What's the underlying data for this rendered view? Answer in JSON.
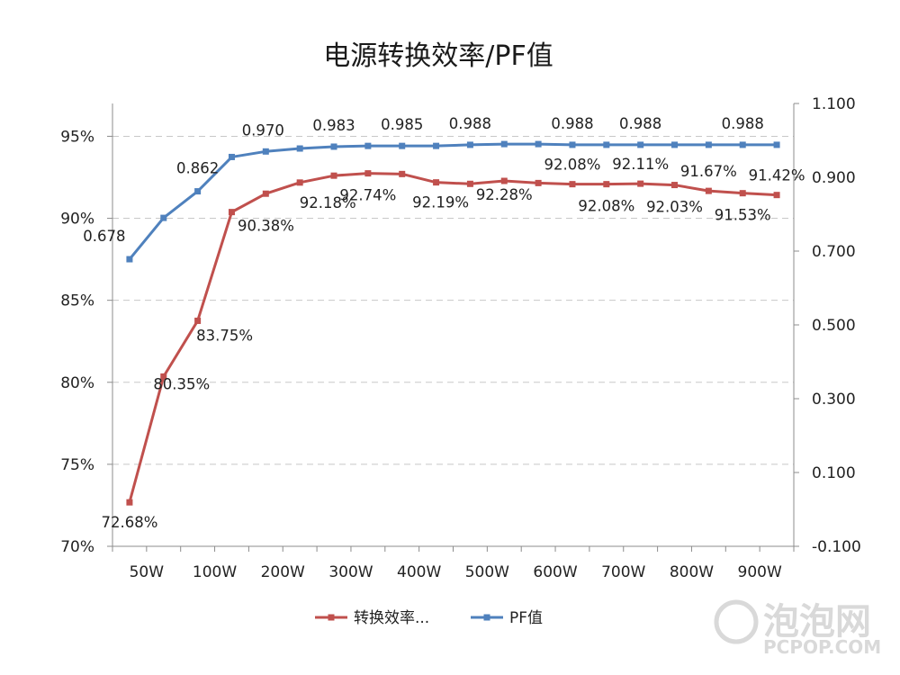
{
  "chart_data": {
    "type": "line",
    "title": "电源转换效率/PF值",
    "categories": [
      "50W",
      "",
      "100W",
      "",
      "200W",
      "",
      "300W",
      "",
      "400W",
      "",
      "500W",
      "",
      "600W",
      "",
      "700W",
      "",
      "800W",
      "",
      "900W",
      ""
    ],
    "series": [
      {
        "name": "转换效率...",
        "axis": "left",
        "color": "#c0504d",
        "values": [
          72.68,
          80.35,
          83.75,
          90.38,
          91.5,
          92.18,
          92.6,
          92.74,
          92.7,
          92.19,
          92.1,
          92.28,
          92.15,
          92.08,
          92.08,
          92.11,
          92.03,
          91.67,
          91.53,
          91.42
        ],
        "labels": [
          "72.68%",
          "80.35%",
          "83.75%",
          "90.38%",
          "",
          "92.18%",
          "",
          "92.74%",
          "",
          "92.19%",
          "",
          "92.28%",
          "",
          "92.08%",
          "92.08%",
          "92.11%",
          "92.03%",
          "91.67%",
          "91.53%",
          "91.42%"
        ]
      },
      {
        "name": "PF值",
        "axis": "right",
        "color": "#4f81bd",
        "values": [
          0.678,
          0.79,
          0.862,
          0.955,
          0.97,
          0.978,
          0.983,
          0.985,
          0.985,
          0.985,
          0.988,
          0.99,
          0.99,
          0.988,
          0.988,
          0.988,
          0.988,
          0.988,
          0.988,
          0.988
        ],
        "labels": [
          "0.678",
          "",
          "0.862",
          "",
          "0.970",
          "",
          "0.983",
          "",
          "0.985",
          "",
          "0.988",
          "",
          "",
          "0.988",
          "",
          "0.988",
          "",
          "",
          "0.988",
          ""
        ]
      }
    ],
    "y_left": {
      "min": 70,
      "max": 97,
      "ticks": [
        70,
        75,
        80,
        85,
        90,
        95
      ],
      "tick_labels": [
        "70%",
        "75%",
        "80%",
        "85%",
        "90%",
        "95%"
      ]
    },
    "y_right": {
      "min": -0.1,
      "max": 1.1,
      "ticks": [
        -0.1,
        0.1,
        0.3,
        0.5,
        0.7,
        0.9,
        1.1
      ],
      "tick_labels": [
        "-0.100",
        "0.100",
        "0.300",
        "0.500",
        "0.700",
        "0.900",
        "1.100"
      ]
    },
    "grid": "horizontal dashed",
    "legend": "bottom"
  },
  "watermark": {
    "text": "泡泡网",
    "subtext": "PCPOP.COM"
  }
}
